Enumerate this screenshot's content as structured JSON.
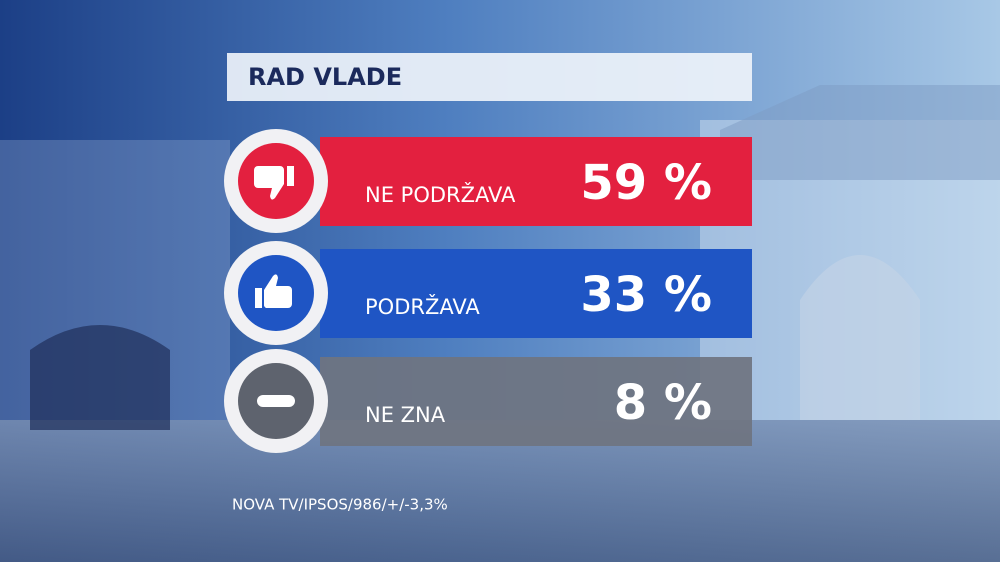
{
  "header": {
    "title": "RAD VLADE"
  },
  "rows": [
    {
      "label": "NE PODRŽAVA",
      "value": "59 %"
    },
    {
      "label": "PODRŽAVA",
      "value": "33 %"
    },
    {
      "label": "NE ZNA",
      "value": "8 %"
    }
  ],
  "footer": {
    "source": "NOVA TV/IPSOS/986/+/-3,3%"
  }
}
